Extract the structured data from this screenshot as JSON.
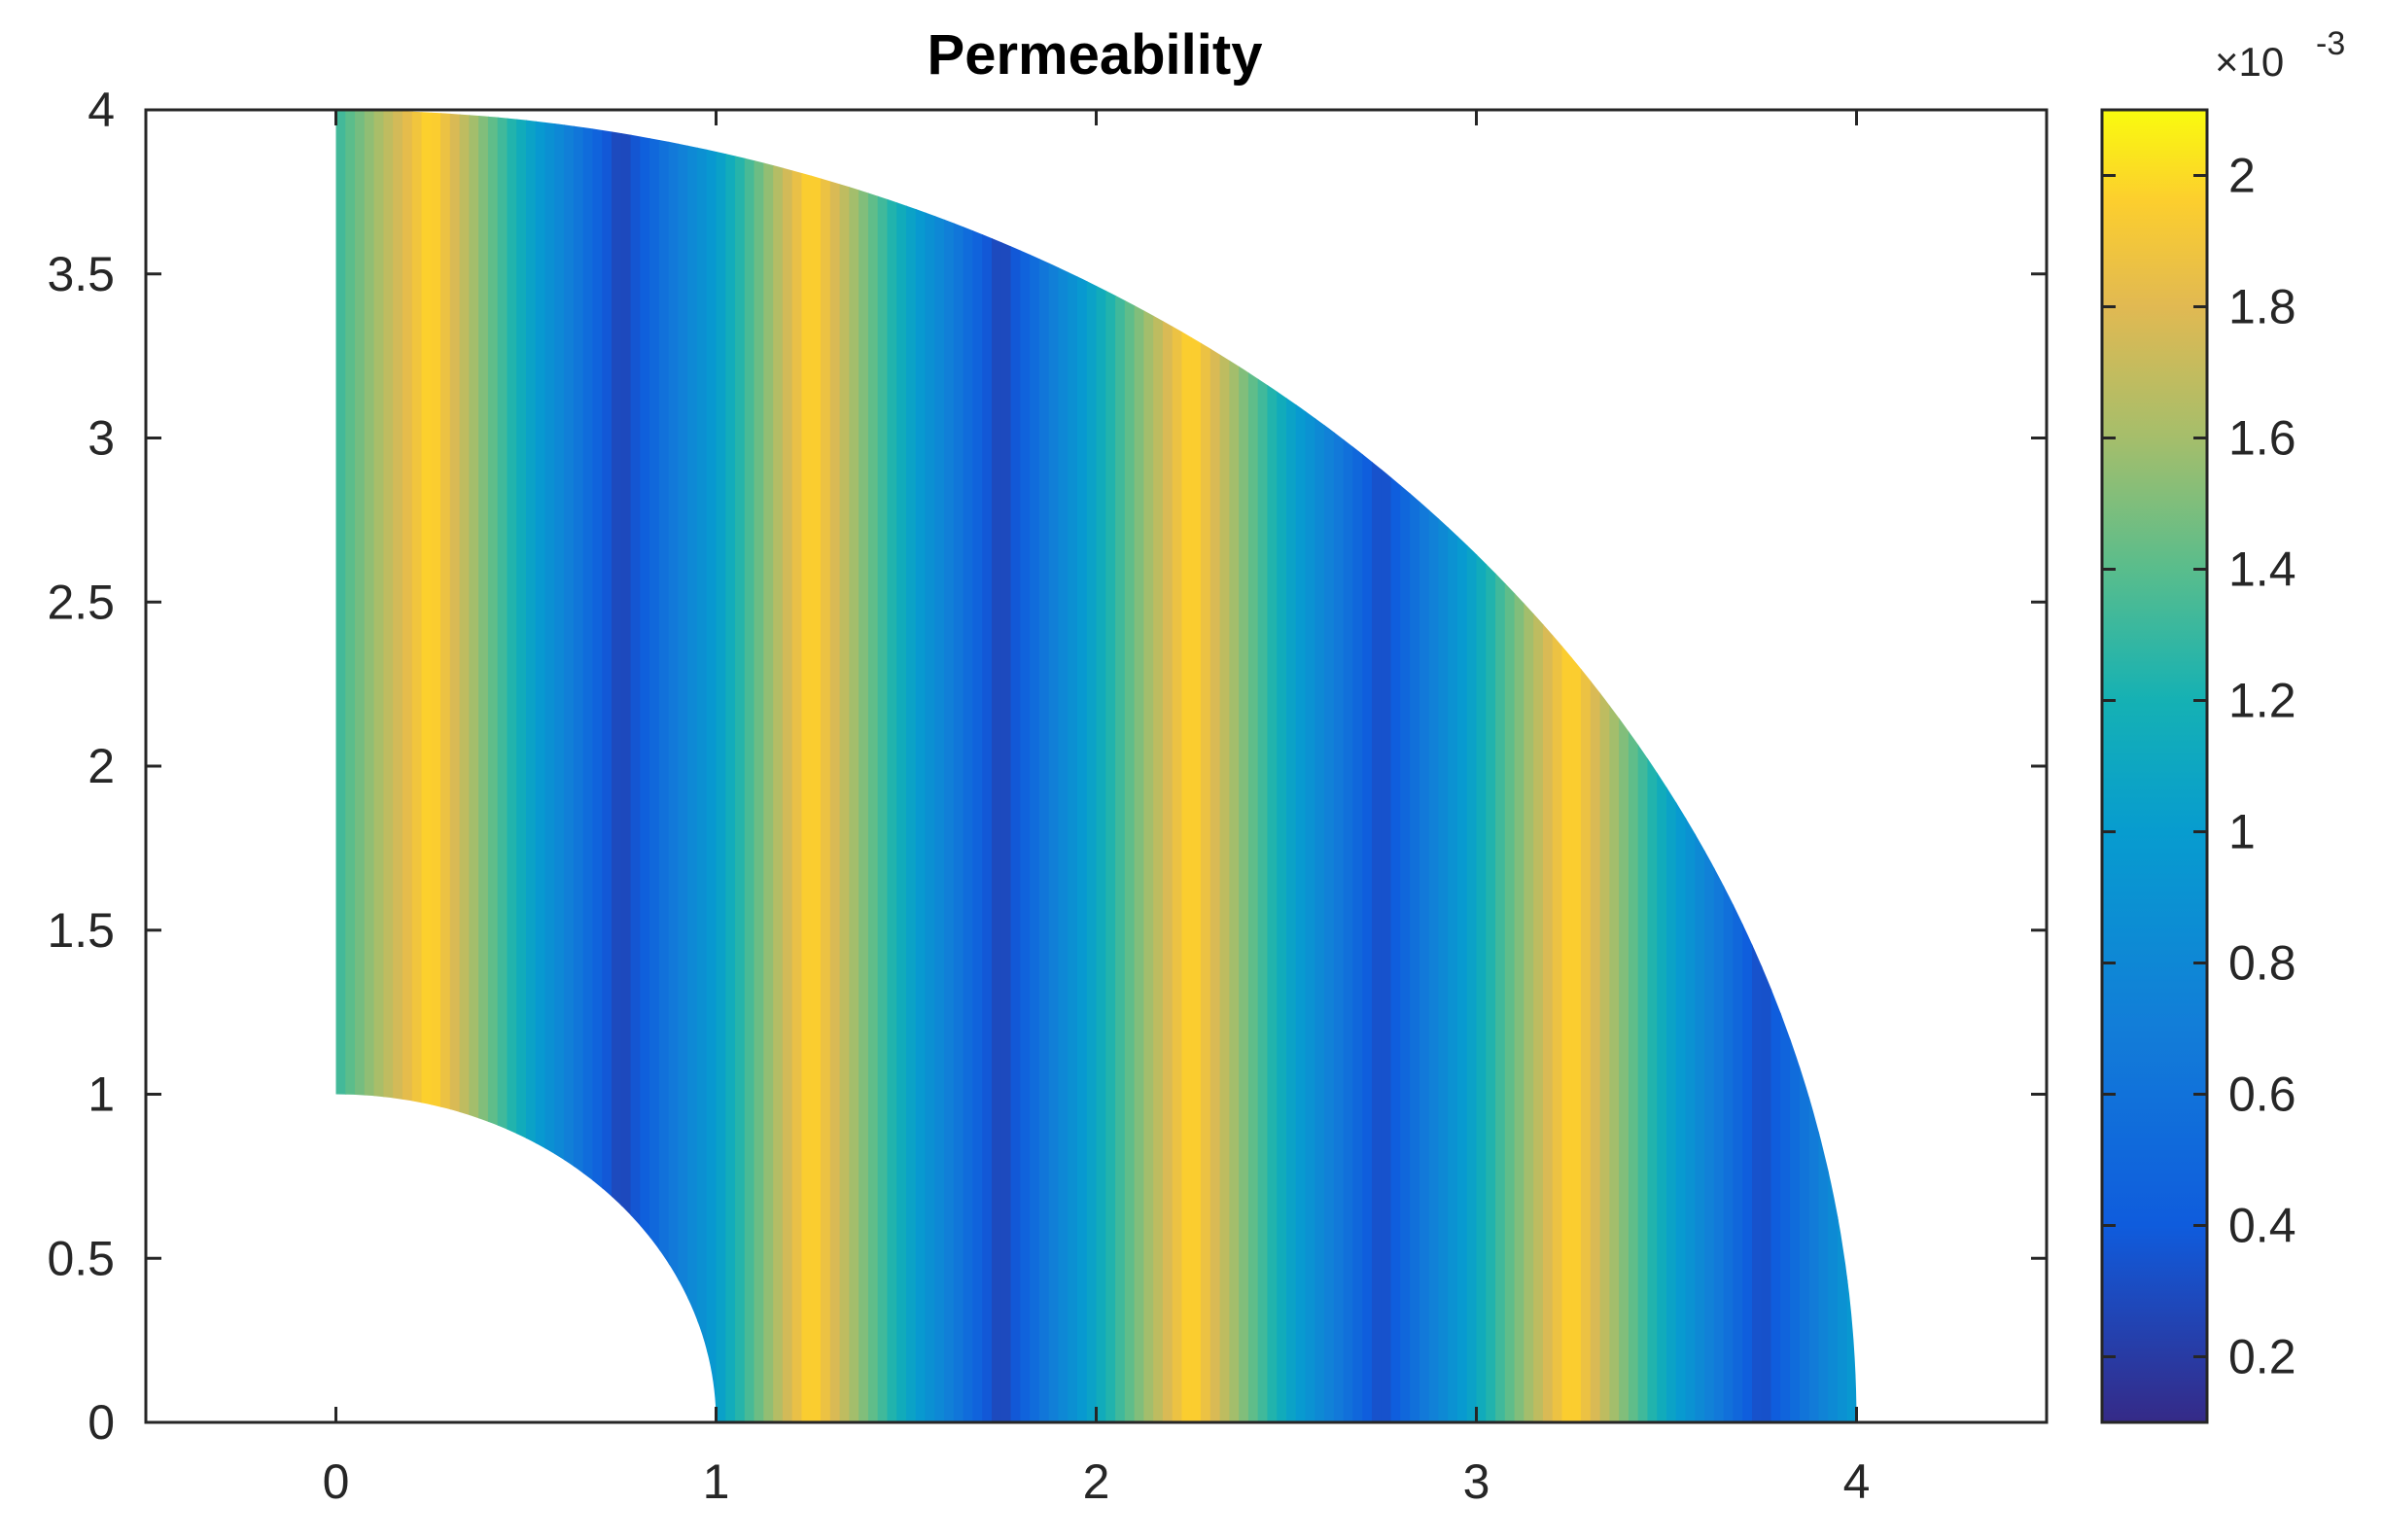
{
  "chart_data": {
    "type": "heatmap",
    "title": "Permeability",
    "xlabel": "",
    "ylabel": "",
    "xlim": [
      -0.5,
      4.5
    ],
    "ylim": [
      0,
      4
    ],
    "x_ticks": [
      "0",
      "1",
      "2",
      "3",
      "4"
    ],
    "y_ticks": [
      "0",
      "0.5",
      "1",
      "1.5",
      "2",
      "2.5",
      "3",
      "3.5",
      "4"
    ],
    "grid": false,
    "domain": {
      "shape": "quarter annulus clipped to square",
      "inner_radius": 1,
      "outer_radius": 4,
      "x_range": [
        0,
        4
      ],
      "y_range": [
        0,
        4
      ]
    },
    "field": {
      "description_units": "permeability ×10^-3",
      "band_pattern_x": [
        0.0,
        0.25,
        0.5,
        0.75,
        1.0,
        1.25,
        1.5,
        1.75,
        2.0,
        2.25,
        2.5,
        2.75,
        3.0,
        3.25,
        3.5,
        3.75,
        4.0
      ],
      "band_values": [
        1.3,
        2.0,
        1.1,
        0.25,
        1.0,
        2.0,
        1.1,
        0.25,
        1.1,
        2.0,
        1.1,
        0.3,
        1.1,
        2.0,
        1.1,
        0.3,
        1.0
      ],
      "value_range": [
        0.1,
        2.1
      ]
    },
    "colorbar": {
      "colormap": "parula",
      "range": [
        0.1,
        2.1
      ],
      "ticks": [
        "0.2",
        "0.4",
        "0.6",
        "0.8",
        "1",
        "1.2",
        "1.4",
        "1.6",
        "1.8",
        "2"
      ],
      "exponent_base": "×10",
      "exponent_power": "-3"
    }
  }
}
